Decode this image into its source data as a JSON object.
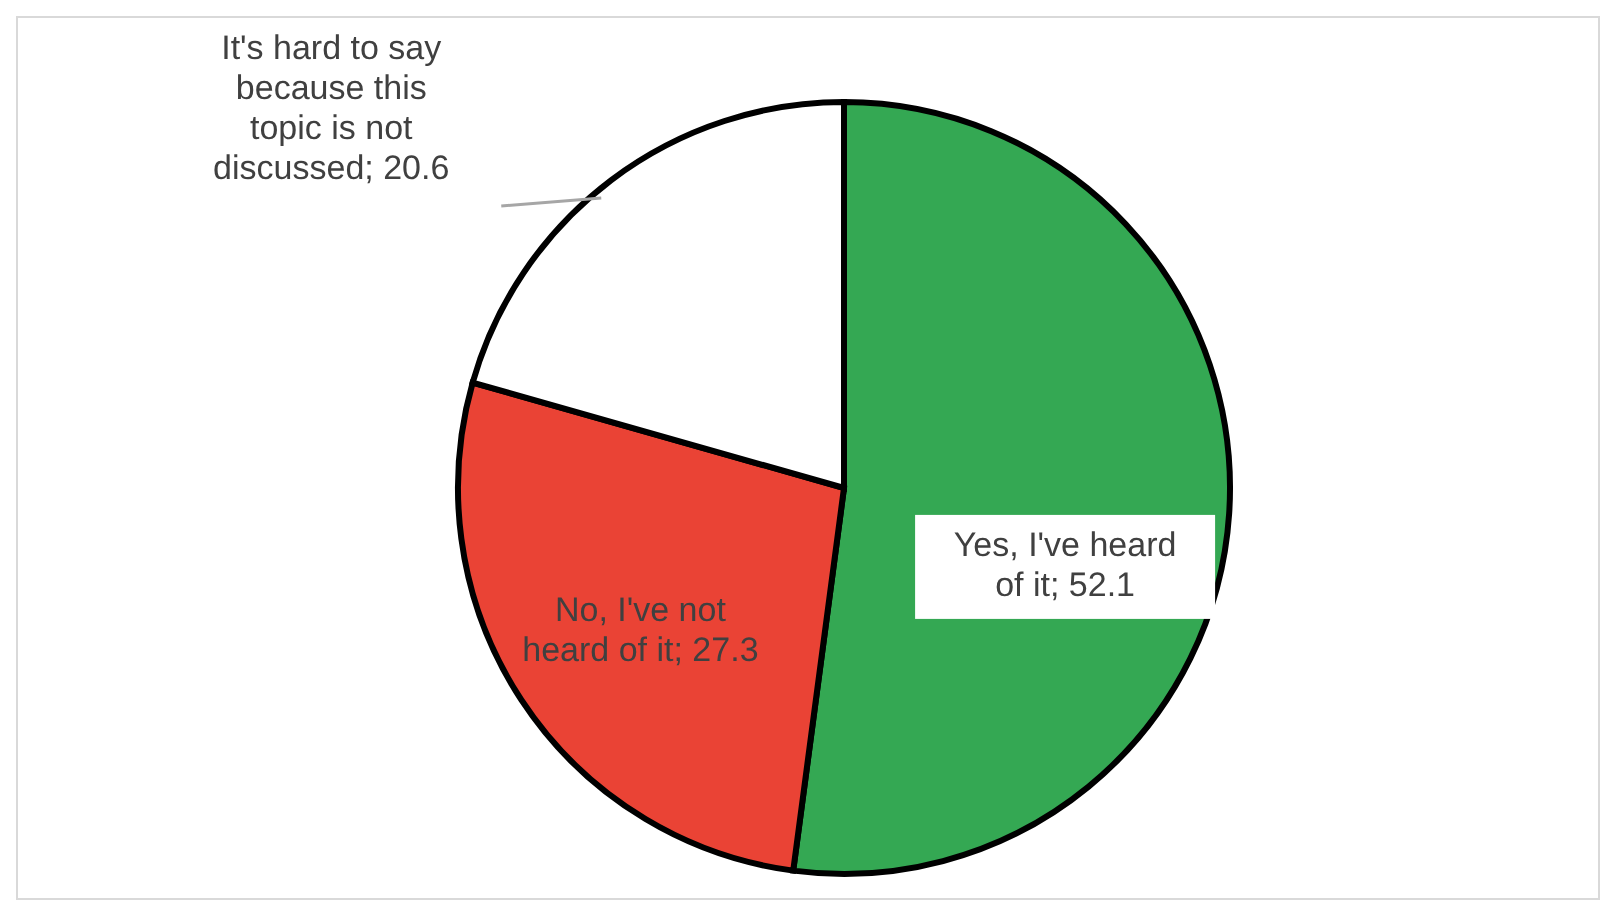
{
  "chart_data": {
    "type": "pie",
    "categories": [
      "Yes, I've heard of it",
      "No, I've not heard of it",
      "It's hard to say because this topic is not discussed"
    ],
    "values": [
      52.1,
      27.3,
      20.6
    ],
    "value_labels": [
      "; 52.1",
      "; 27.3",
      "; 20.6"
    ],
    "colors": [
      "#34a853",
      "#ea4335",
      "#ffffff"
    ]
  }
}
